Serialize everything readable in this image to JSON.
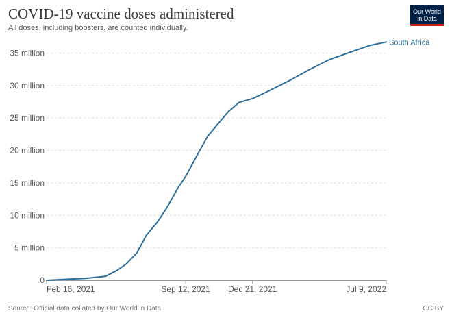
{
  "header": {
    "title": "COVID-19 vaccine doses administered",
    "subtitle": "All doses, including boosters, are counted individually."
  },
  "logo": {
    "line1": "Our World",
    "line2": "in Data"
  },
  "footer": {
    "source": "Source: Official data collated by Our World in Data",
    "license": "CC BY"
  },
  "colors": {
    "series": "#2c6e9c",
    "grid": "#dddddd",
    "axis": "#999999",
    "logo_bg": "#002147",
    "logo_accent": "#ce261e"
  },
  "chart_data": {
    "type": "line",
    "title": "COVID-19 vaccine doses administered",
    "subtitle": "All doses, including boosters, are counted individually.",
    "xlabel": "",
    "ylabel": "",
    "x_axis_type": "date",
    "xlim": [
      "2021-02-16",
      "2022-07-09"
    ],
    "ylim": [
      0,
      37000000
    ],
    "x_ticks": [
      {
        "date": "2021-02-16",
        "label": "Feb 16, 2021"
      },
      {
        "date": "2021-09-12",
        "label": "Sep 12, 2021"
      },
      {
        "date": "2021-12-21",
        "label": "Dec 21, 2021"
      },
      {
        "date": "2022-07-09",
        "label": "Jul 9, 2022"
      }
    ],
    "y_ticks": [
      {
        "value": 0,
        "label": "0"
      },
      {
        "value": 5000000,
        "label": "5 million"
      },
      {
        "value": 10000000,
        "label": "10 million"
      },
      {
        "value": 15000000,
        "label": "15 million"
      },
      {
        "value": 20000000,
        "label": "20 million"
      },
      {
        "value": 25000000,
        "label": "25 million"
      },
      {
        "value": 30000000,
        "label": "30 million"
      },
      {
        "value": 35000000,
        "label": "35 million"
      }
    ],
    "grid": true,
    "series": [
      {
        "name": "South Africa",
        "color": "#2c6e9c",
        "points": [
          {
            "x": "2021-02-16",
            "y": 0
          },
          {
            "x": "2021-03-15",
            "y": 150000
          },
          {
            "x": "2021-04-15",
            "y": 300000
          },
          {
            "x": "2021-05-15",
            "y": 600000
          },
          {
            "x": "2021-06-01",
            "y": 1500000
          },
          {
            "x": "2021-06-15",
            "y": 2500000
          },
          {
            "x": "2021-07-01",
            "y": 4200000
          },
          {
            "x": "2021-07-15",
            "y": 6900000
          },
          {
            "x": "2021-08-01",
            "y": 9000000
          },
          {
            "x": "2021-08-15",
            "y": 11200000
          },
          {
            "x": "2021-09-01",
            "y": 14300000
          },
          {
            "x": "2021-09-12",
            "y": 16000000
          },
          {
            "x": "2021-10-01",
            "y": 19600000
          },
          {
            "x": "2021-10-15",
            "y": 22200000
          },
          {
            "x": "2021-11-01",
            "y": 24300000
          },
          {
            "x": "2021-11-15",
            "y": 26000000
          },
          {
            "x": "2021-12-01",
            "y": 27400000
          },
          {
            "x": "2021-12-21",
            "y": 28000000
          },
          {
            "x": "2022-01-15",
            "y": 29200000
          },
          {
            "x": "2022-02-15",
            "y": 30800000
          },
          {
            "x": "2022-03-15",
            "y": 32400000
          },
          {
            "x": "2022-04-15",
            "y": 34000000
          },
          {
            "x": "2022-05-15",
            "y": 35100000
          },
          {
            "x": "2022-06-15",
            "y": 36200000
          },
          {
            "x": "2022-07-09",
            "y": 36700000
          }
        ]
      }
    ]
  }
}
